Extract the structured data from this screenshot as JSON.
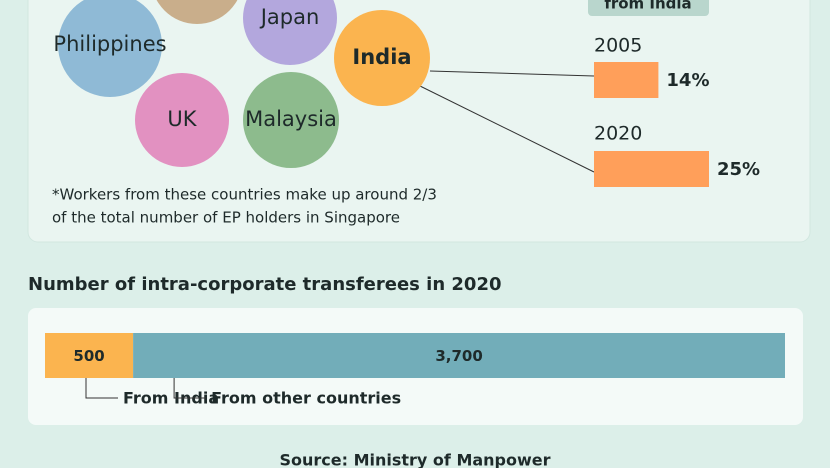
{
  "bubbles": {
    "labels": [
      "Philippines",
      "Japan",
      "India",
      "UK",
      "Malaysia"
    ],
    "colors": [
      "#8fbad6",
      "#b3a7dd",
      "#fbb44f",
      "#e291c1",
      "#8dbb8d"
    ]
  },
  "note": [
    "*Workers from these countries make up around 2/3",
    "of the total number of EP holders in Singapore"
  ],
  "india_share": {
    "header": "from India",
    "categories": [
      "2005",
      "2020"
    ],
    "values": [
      14,
      25
    ],
    "value_labels": [
      "14%",
      "25%"
    ],
    "color": "#ff9f5a"
  },
  "transferees": {
    "title": "Number of intra-corporate transferees in 2020",
    "type": "bar",
    "series": [
      {
        "name": "From India",
        "color": "#fbb44f",
        "values": [
          500
        ],
        "value_labels": [
          "500"
        ]
      },
      {
        "name": "From other countries",
        "color": "#72adb9",
        "values": [
          3700
        ],
        "value_labels": [
          "3,700"
        ]
      }
    ]
  },
  "source": "Source: Ministry of Manpower"
}
